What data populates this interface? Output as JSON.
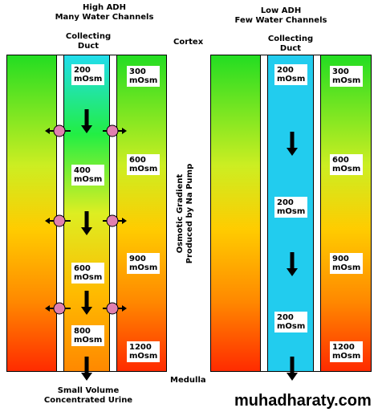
{
  "left": {
    "title_line1": "High ADH",
    "title_line2": "Many Water Channels",
    "duct_line1": "Collecting",
    "duct_line2": "Duct",
    "duct_values": [
      {
        "v": "200",
        "u": "mOsm"
      },
      {
        "v": "400",
        "u": "mOsm"
      },
      {
        "v": "600",
        "u": "mOsm"
      },
      {
        "v": "800",
        "u": "mOsm"
      }
    ],
    "tissue_values": [
      {
        "v": "300",
        "u": "mOsm"
      },
      {
        "v": "600",
        "u": "mOsm"
      },
      {
        "v": "900",
        "u": "mOsm"
      },
      {
        "v": "1200",
        "u": "mOsm"
      }
    ],
    "bottom_line1": "Small Volume",
    "bottom_line2": "Concentrated Urine"
  },
  "right": {
    "title_line1": "Low ADH",
    "title_line2": "Few Water Channels",
    "duct_line1": "Collecting",
    "duct_line2": "Duct",
    "duct_values": [
      {
        "v": "200",
        "u": "mOsm"
      },
      {
        "v": "200",
        "u": "mOsm"
      },
      {
        "v": "200",
        "u": "mOsm"
      }
    ],
    "tissue_values": [
      {
        "v": "300",
        "u": "mOsm"
      },
      {
        "v": "600",
        "u": "mOsm"
      },
      {
        "v": "900",
        "u": "mOsm"
      },
      {
        "v": "1200",
        "u": "mOsm"
      }
    ]
  },
  "center": {
    "cortex": "Cortex",
    "medulla": "Medulla",
    "gradient_line1": "Osmotic Gradient",
    "gradient_line2": "Produced by Na Pump"
  },
  "watermark": "muhadharaty.com",
  "colors": {
    "duct_cyan": "#22ccee",
    "tissue_top": "#22dd22",
    "tissue_bottom": "#ff2a00",
    "channel_pink": "#e080b0"
  }
}
